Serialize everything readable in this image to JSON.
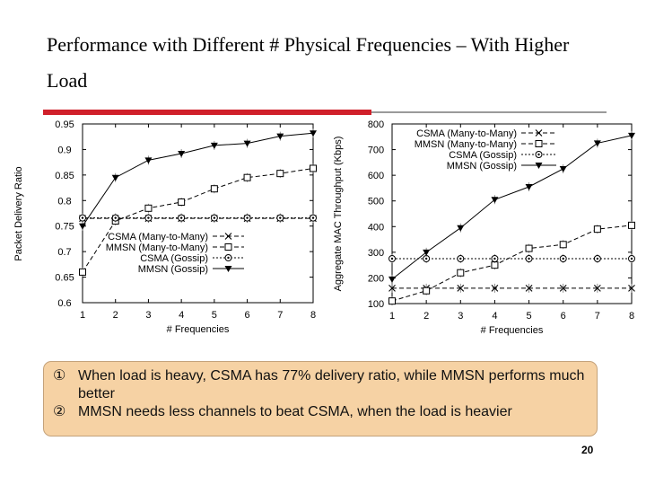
{
  "slide": {
    "title": "Performance with Different # Physical Frequencies – With Higher Load",
    "page_number": "20",
    "notes": [
      {
        "marker": "①",
        "text": "When load is heavy, CSMA has 77% delivery ratio, while MMSN performs much better"
      },
      {
        "marker": "②",
        "text": "MMSN needs less channels to beat CSMA, when the load is heavier"
      }
    ]
  },
  "colors": {
    "accent_bar": "#d0202a",
    "notes_bg": "#f6d2a4"
  },
  "chart_data": [
    {
      "type": "line",
      "title": "",
      "xlabel": "# Frequencies",
      "ylabel": "Packet Delivery Ratio",
      "x": [
        1,
        2,
        3,
        4,
        5,
        6,
        7,
        8
      ],
      "xlim": [
        1,
        8
      ],
      "ylim": [
        0.6,
        0.95
      ],
      "yticks": [
        0.6,
        0.65,
        0.7,
        0.75,
        0.8,
        0.85,
        0.9,
        0.95
      ],
      "ytick_labels": [
        "0.6",
        "0.65",
        "0.7",
        "0.75",
        "0.8",
        "0.85",
        "0.9",
        "0.95"
      ],
      "legend_position": "bottom-left",
      "series": [
        {
          "name": "CSMA (Many-to-Many)",
          "marker": "x",
          "style": "dashed",
          "values": [
            0.765,
            0.765,
            0.765,
            0.765,
            0.765,
            0.765,
            0.765,
            0.765
          ]
        },
        {
          "name": "MMSN (Many-to-Many)",
          "marker": "square",
          "style": "dashed",
          "values": [
            0.66,
            0.76,
            0.785,
            0.797,
            0.823,
            0.845,
            0.853,
            0.863
          ]
        },
        {
          "name": "CSMA (Gossip)",
          "marker": "circle",
          "style": "dotted",
          "values": [
            0.766,
            0.766,
            0.766,
            0.766,
            0.766,
            0.766,
            0.766,
            0.766
          ]
        },
        {
          "name": "MMSN (Gossip)",
          "marker": "triangle",
          "style": "solid",
          "values": [
            0.75,
            0.845,
            0.879,
            0.892,
            0.908,
            0.912,
            0.926,
            0.932
          ]
        }
      ]
    },
    {
      "type": "line",
      "title": "",
      "xlabel": "# Frequencies",
      "ylabel": "Aggregate MAC Throughput (Kbps)",
      "x": [
        1,
        2,
        3,
        4,
        5,
        6,
        7,
        8
      ],
      "xlim": [
        1,
        8
      ],
      "ylim": [
        100,
        800
      ],
      "yticks": [
        100,
        200,
        300,
        400,
        500,
        600,
        700,
        800
      ],
      "ytick_labels": [
        "100",
        "200",
        "300",
        "400",
        "500",
        "600",
        "700",
        "800"
      ],
      "legend_position": "top-right",
      "series": [
        {
          "name": "CSMA (Many-to-Many)",
          "marker": "x",
          "style": "dashed",
          "values": [
            160,
            160,
            160,
            160,
            160,
            160,
            160,
            160
          ]
        },
        {
          "name": "MMSN (Many-to-Many)",
          "marker": "square",
          "style": "dashed",
          "values": [
            110,
            150,
            220,
            250,
            315,
            330,
            390,
            405
          ]
        },
        {
          "name": "CSMA (Gossip)",
          "marker": "circle",
          "style": "dotted",
          "values": [
            275,
            275,
            275,
            275,
            275,
            275,
            275,
            275
          ]
        },
        {
          "name": "MMSN (Gossip)",
          "marker": "triangle",
          "style": "solid",
          "values": [
            195,
            300,
            395,
            505,
            555,
            625,
            725,
            755
          ]
        }
      ]
    }
  ]
}
